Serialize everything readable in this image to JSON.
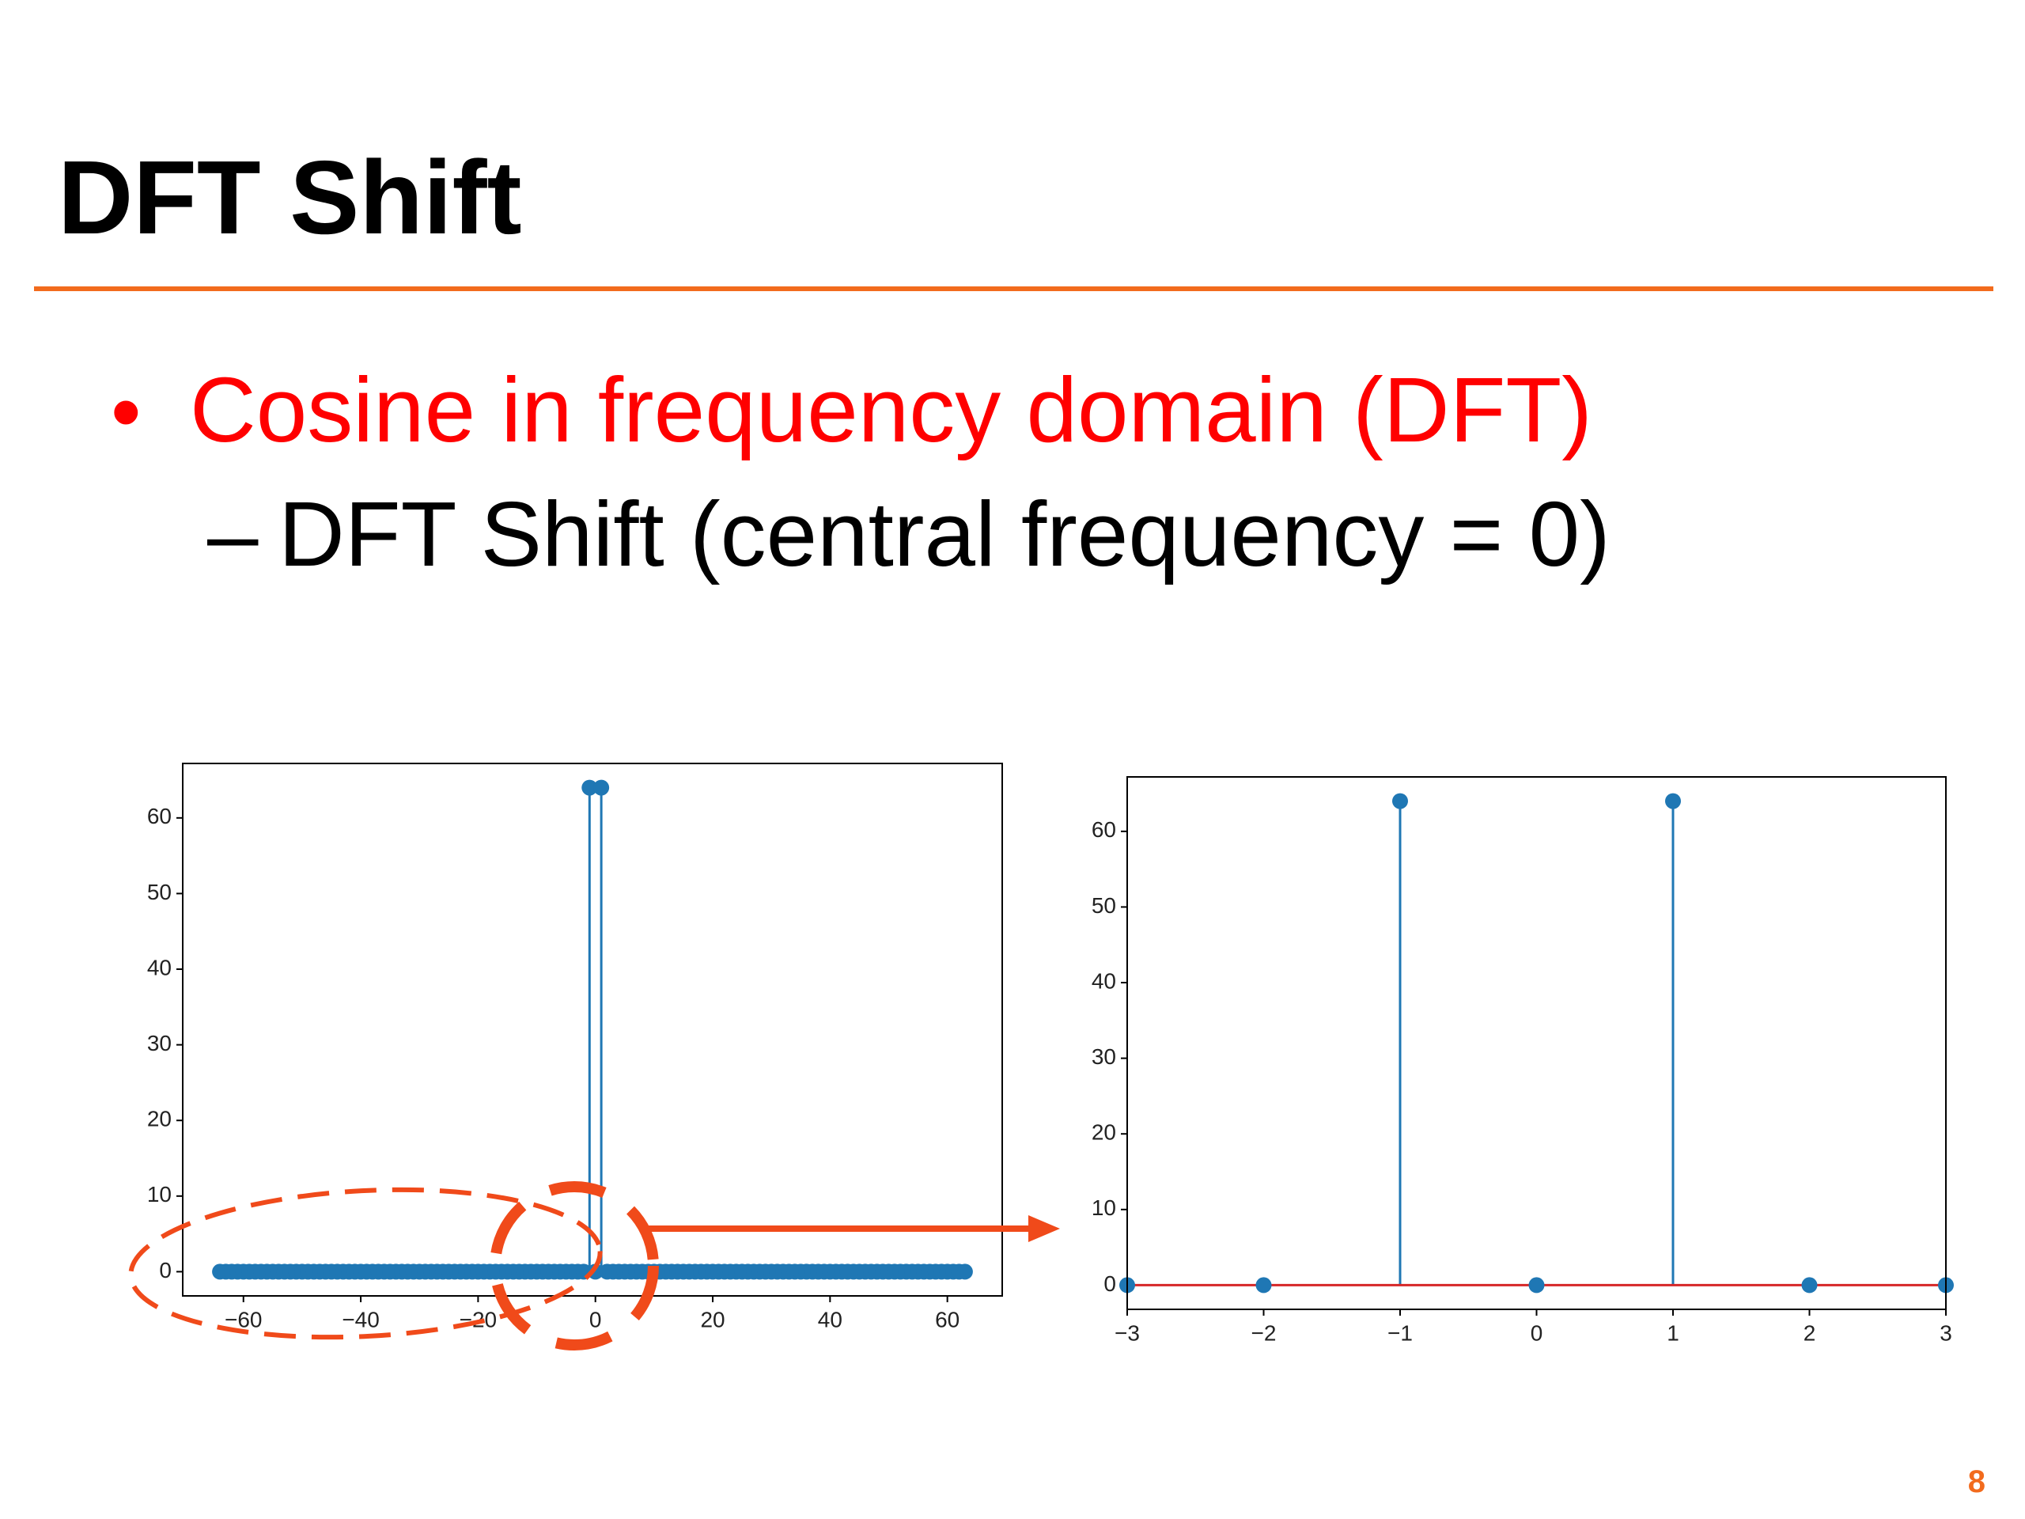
{
  "slide_title": "DFT Shift",
  "bullets": [
    {
      "text": "Cosine in frequency domain (DFT)",
      "color": "#ff0000"
    },
    {
      "text": "DFT Shift (central frequency = 0)",
      "color": "#000000"
    }
  ],
  "page_number": "8",
  "chart_data": [
    {
      "type": "stem",
      "color": "#1f77b4",
      "baseline_color": "#d62728",
      "x": [
        -64,
        -63,
        -62,
        -61,
        -60,
        -59,
        -58,
        -57,
        -56,
        -55,
        -54,
        -53,
        -52,
        -51,
        -50,
        -49,
        -48,
        -47,
        -46,
        -45,
        -44,
        -43,
        -42,
        -41,
        -40,
        -39,
        -38,
        -37,
        -36,
        -35,
        -34,
        -33,
        -32,
        -31,
        -30,
        -29,
        -28,
        -27,
        -26,
        -25,
        -24,
        -23,
        -22,
        -21,
        -20,
        -19,
        -18,
        -17,
        -16,
        -15,
        -14,
        -13,
        -12,
        -11,
        -10,
        -9,
        -8,
        -7,
        -6,
        -5,
        -4,
        -3,
        -2,
        -1,
        0,
        1,
        2,
        3,
        4,
        5,
        6,
        7,
        8,
        9,
        10,
        11,
        12,
        13,
        14,
        15,
        16,
        17,
        18,
        19,
        20,
        21,
        22,
        23,
        24,
        25,
        26,
        27,
        28,
        29,
        30,
        31,
        32,
        33,
        34,
        35,
        36,
        37,
        38,
        39,
        40,
        41,
        42,
        43,
        44,
        45,
        46,
        47,
        48,
        49,
        50,
        51,
        52,
        53,
        54,
        55,
        56,
        57,
        58,
        59,
        60,
        61,
        62,
        63
      ],
      "values": [
        0,
        0,
        0,
        0,
        0,
        0,
        0,
        0,
        0,
        0,
        0,
        0,
        0,
        0,
        0,
        0,
        0,
        0,
        0,
        0,
        0,
        0,
        0,
        0,
        0,
        0,
        0,
        0,
        0,
        0,
        0,
        0,
        0,
        0,
        0,
        0,
        0,
        0,
        0,
        0,
        0,
        0,
        0,
        0,
        0,
        0,
        0,
        0,
        0,
        0,
        0,
        0,
        0,
        0,
        0,
        0,
        0,
        0,
        0,
        0,
        0,
        0,
        0,
        64,
        0,
        64,
        0,
        0,
        0,
        0,
        0,
        0,
        0,
        0,
        0,
        0,
        0,
        0,
        0,
        0,
        0,
        0,
        0,
        0,
        0,
        0,
        0,
        0,
        0,
        0,
        0,
        0,
        0,
        0,
        0,
        0,
        0,
        0,
        0,
        0,
        0,
        0,
        0,
        0,
        0,
        0,
        0,
        0,
        0,
        0,
        0,
        0,
        0,
        0,
        0,
        0,
        0,
        0,
        0,
        0,
        0,
        0,
        0,
        0,
        0,
        0,
        0,
        0
      ],
      "xlim": [
        -70.35,
        69.35
      ],
      "xticks": [
        {
          "value": -60,
          "label": "−60"
        },
        {
          "value": -40,
          "label": "−40"
        },
        {
          "value": -20,
          "label": "−20"
        },
        0,
        20,
        40,
        60
      ],
      "ylim": [
        -3.2,
        67.2
      ],
      "yticks": [
        0,
        10,
        20,
        30,
        40,
        50,
        60
      ]
    },
    {
      "type": "stem",
      "color": "#1f77b4",
      "baseline_color": "#d62728",
      "x": [
        -3,
        -2,
        -1,
        0,
        1,
        2,
        3
      ],
      "values": [
        0,
        0,
        64,
        0,
        64,
        0,
        0
      ],
      "xlim": [
        -3,
        3
      ],
      "xticks": [
        {
          "value": -3,
          "label": "−3"
        },
        {
          "value": -2,
          "label": "−2"
        },
        {
          "value": -1,
          "label": "−1"
        },
        0,
        1,
        2,
        3
      ],
      "ylim": [
        -3.2,
        67.2
      ],
      "yticks": [
        0,
        10,
        20,
        30,
        40,
        50,
        60
      ]
    }
  ]
}
